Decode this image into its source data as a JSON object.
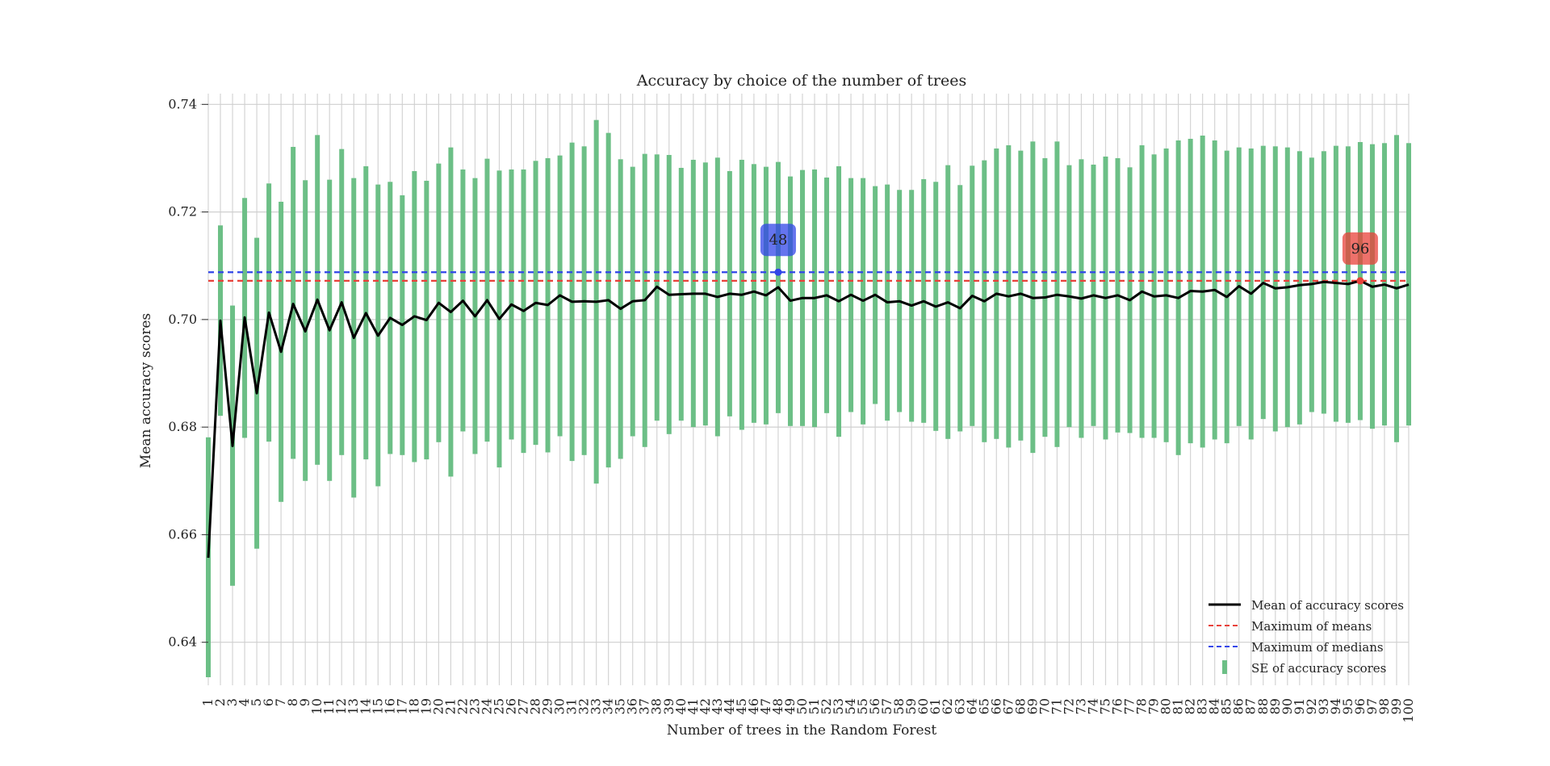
{
  "chart_data": {
    "type": "line",
    "title": "Accuracy by choice of the number of trees",
    "xlabel": "Number of trees in the Random Forest",
    "ylabel": "Mean accuracy scores",
    "ylim": [
      0.632,
      0.742
    ],
    "yticks": [
      0.64,
      0.66,
      0.68,
      0.7,
      0.72,
      0.74
    ],
    "ytick_labels": [
      "0.64",
      "0.66",
      "0.68",
      "0.70",
      "0.72",
      "0.74"
    ],
    "grid": true,
    "legend_position": "bottom-right",
    "x": [
      1,
      2,
      3,
      4,
      5,
      6,
      7,
      8,
      9,
      10,
      11,
      12,
      13,
      14,
      15,
      16,
      17,
      18,
      19,
      20,
      21,
      22,
      23,
      24,
      25,
      26,
      27,
      28,
      29,
      30,
      31,
      32,
      33,
      34,
      35,
      36,
      37,
      38,
      39,
      40,
      41,
      42,
      43,
      44,
      45,
      46,
      47,
      48,
      49,
      50,
      51,
      52,
      53,
      54,
      55,
      56,
      57,
      58,
      59,
      60,
      61,
      62,
      63,
      64,
      65,
      66,
      67,
      68,
      69,
      70,
      71,
      72,
      73,
      74,
      75,
      76,
      77,
      78,
      79,
      80,
      81,
      82,
      83,
      84,
      85,
      86,
      87,
      88,
      89,
      90,
      91,
      92,
      93,
      94,
      95,
      96,
      97,
      98,
      99,
      100
    ],
    "series": [
      {
        "name": "Mean of accuracy scores",
        "color": "#000000",
        "values": [
          0.6557,
          0.6998,
          0.6765,
          0.7004,
          0.6863,
          0.7013,
          0.694,
          0.7029,
          0.6978,
          0.7037,
          0.698,
          0.7032,
          0.6966,
          0.7012,
          0.697,
          0.7003,
          0.699,
          0.7006,
          0.6999,
          0.7031,
          0.7014,
          0.7035,
          0.7006,
          0.7036,
          0.7001,
          0.7028,
          0.7016,
          0.7031,
          0.7027,
          0.7045,
          0.7033,
          0.7034,
          0.7033,
          0.7036,
          0.702,
          0.7034,
          0.7036,
          0.7061,
          0.7046,
          0.7047,
          0.7048,
          0.7048,
          0.7042,
          0.7048,
          0.7046,
          0.7052,
          0.7045,
          0.706,
          0.7035,
          0.704,
          0.704,
          0.7045,
          0.7034,
          0.7046,
          0.7035,
          0.7046,
          0.7032,
          0.7034,
          0.7026,
          0.7034,
          0.7024,
          0.7032,
          0.7021,
          0.7044,
          0.7034,
          0.7048,
          0.7043,
          0.7048,
          0.704,
          0.7041,
          0.7046,
          0.7043,
          0.7039,
          0.7045,
          0.704,
          0.7045,
          0.7036,
          0.7052,
          0.7043,
          0.7045,
          0.704,
          0.7053,
          0.7052,
          0.7055,
          0.7042,
          0.7062,
          0.7048,
          0.7068,
          0.7058,
          0.706,
          0.7064,
          0.7066,
          0.707,
          0.7068,
          0.7066,
          0.7072,
          0.7061,
          0.7065,
          0.7058,
          0.7065
        ]
      },
      {
        "name": "Maximum of means",
        "color": "#e8413a",
        "style": "dashed",
        "value": 0.7072
      },
      {
        "name": "Maximum of medians",
        "color": "#3146e8",
        "style": "dashed",
        "value": 0.7088
      },
      {
        "name": "SE of accuracy scores",
        "color": "#6cbf86",
        "low": [
          0.6335,
          0.6821,
          0.6505,
          0.678,
          0.6574,
          0.6773,
          0.6661,
          0.6741,
          0.67,
          0.673,
          0.67,
          0.6748,
          0.6669,
          0.674,
          0.669,
          0.675,
          0.6748,
          0.6735,
          0.674,
          0.6772,
          0.6708,
          0.6792,
          0.675,
          0.6773,
          0.6725,
          0.6777,
          0.6752,
          0.6767,
          0.6753,
          0.6783,
          0.6737,
          0.6748,
          0.6695,
          0.6725,
          0.6741,
          0.6783,
          0.6763,
          0.6812,
          0.6787,
          0.6812,
          0.68,
          0.6803,
          0.6783,
          0.682,
          0.6795,
          0.6808,
          0.6805,
          0.6826,
          0.6802,
          0.6802,
          0.68,
          0.6826,
          0.6782,
          0.6828,
          0.6805,
          0.6843,
          0.6812,
          0.6828,
          0.681,
          0.6808,
          0.6793,
          0.6778,
          0.6792,
          0.6802,
          0.6772,
          0.6778,
          0.6762,
          0.6775,
          0.6752,
          0.6782,
          0.6763,
          0.68,
          0.678,
          0.6802,
          0.6777,
          0.679,
          0.6789,
          0.678,
          0.678,
          0.6772,
          0.6748,
          0.677,
          0.6762,
          0.6777,
          0.677,
          0.6802,
          0.6777,
          0.6815,
          0.6792,
          0.68,
          0.6805,
          0.6828,
          0.6825,
          0.681,
          0.6808,
          0.6813,
          0.6797,
          0.6803,
          0.6772,
          0.6803
        ],
        "high": [
          0.6781,
          0.7175,
          0.7026,
          0.7226,
          0.7152,
          0.7253,
          0.7219,
          0.7321,
          0.7259,
          0.7343,
          0.726,
          0.7317,
          0.7263,
          0.7285,
          0.7251,
          0.7256,
          0.7231,
          0.7276,
          0.7258,
          0.729,
          0.732,
          0.7279,
          0.7263,
          0.7299,
          0.7277,
          0.7279,
          0.7279,
          0.7295,
          0.73,
          0.7305,
          0.7329,
          0.7322,
          0.7371,
          0.7347,
          0.7298,
          0.7284,
          0.7308,
          0.7307,
          0.7306,
          0.7282,
          0.7297,
          0.7292,
          0.7301,
          0.7276,
          0.7297,
          0.7289,
          0.7284,
          0.7293,
          0.7266,
          0.7278,
          0.7279,
          0.7264,
          0.7285,
          0.7263,
          0.7263,
          0.7248,
          0.7251,
          0.7241,
          0.7241,
          0.7261,
          0.7256,
          0.7287,
          0.725,
          0.7286,
          0.7296,
          0.7318,
          0.7324,
          0.7314,
          0.7331,
          0.73,
          0.7331,
          0.7287,
          0.7298,
          0.7288,
          0.7303,
          0.73,
          0.7283,
          0.7324,
          0.7307,
          0.7318,
          0.7333,
          0.7336,
          0.7342,
          0.7333,
          0.7314,
          0.732,
          0.7318,
          0.7323,
          0.7322,
          0.732,
          0.7313,
          0.7301,
          0.7313,
          0.7323,
          0.7322,
          0.733,
          0.7326,
          0.7328,
          0.7343,
          0.7328
        ]
      }
    ],
    "annotations": [
      {
        "label": "48",
        "x": 48,
        "y": 0.7088,
        "color": "#3146e8"
      },
      {
        "label": "96",
        "x": 96,
        "y": 0.7072,
        "color": "#e8413a"
      }
    ]
  }
}
